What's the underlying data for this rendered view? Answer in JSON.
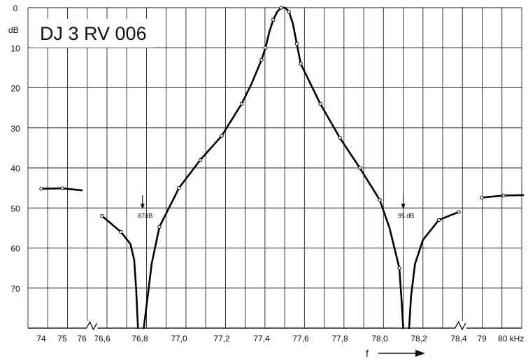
{
  "chart_data": {
    "type": "line",
    "title": "DJ 3 RV 006",
    "ylabel": "dB",
    "xlabel": "f",
    "x_unit": "kHz",
    "y_inverted": true,
    "ylim": [
      0,
      80
    ],
    "grid": true,
    "y_ticks": [
      "0",
      "10",
      "20",
      "30",
      "40",
      "50",
      "60",
      "70"
    ],
    "y_tick_values": [
      0,
      10,
      20,
      30,
      40,
      50,
      60,
      70
    ],
    "x_ticks": [
      {
        "label": "74",
        "value": 74
      },
      {
        "label": "75",
        "value": 75
      },
      {
        "label": "76",
        "value": 76
      },
      {
        "label": "76,6",
        "value": 76.6
      },
      {
        "label": "76,8",
        "value": 76.8
      },
      {
        "label": "77,0",
        "value": 77.0
      },
      {
        "label": "77,2",
        "value": 77.2
      },
      {
        "label": "77,4",
        "value": 77.4
      },
      {
        "label": "77,6",
        "value": 77.6
      },
      {
        "label": "77,8",
        "value": 77.8
      },
      {
        "label": "78,0",
        "value": 78.0
      },
      {
        "label": "78,2",
        "value": 78.2
      },
      {
        "label": "78,4",
        "value": 78.4
      },
      {
        "label": "79",
        "value": 79
      },
      {
        "label": "80 kHz",
        "value": 80
      }
    ],
    "axis_breaks": [
      76.3,
      78.45
    ],
    "annotations": [
      {
        "text": "87dB",
        "x": 76.81,
        "y": 50
      },
      {
        "text": "95 dB",
        "x": 78.12,
        "y": 50
      }
    ],
    "series": [
      {
        "points": [
          [
            74.0,
            45.2
          ],
          [
            75.0,
            45.1
          ],
          [
            76.0,
            45.6
          ]
        ],
        "markers": [
          [
            74.0,
            45.2
          ],
          [
            75.0,
            45.1
          ]
        ]
      },
      {
        "points": [
          [
            76.6,
            52
          ],
          [
            76.7,
            56
          ],
          [
            76.75,
            59
          ],
          [
            76.77,
            63
          ],
          [
            76.78,
            70
          ],
          [
            76.79,
            80
          ]
        ],
        "markers": [
          [
            76.6,
            52
          ],
          [
            76.7,
            56
          ]
        ]
      },
      {
        "points": [
          [
            76.82,
            80
          ],
          [
            76.84,
            72
          ],
          [
            76.86,
            64
          ],
          [
            76.9,
            54.7
          ],
          [
            77.0,
            45
          ],
          [
            77.1,
            38
          ],
          [
            77.2,
            32
          ],
          [
            77.3,
            24
          ],
          [
            77.35,
            19
          ],
          [
            77.4,
            13
          ],
          [
            77.42,
            10
          ],
          [
            77.44,
            6
          ],
          [
            77.46,
            3
          ],
          [
            77.48,
            1
          ],
          [
            77.5,
            0
          ],
          [
            77.52,
            0
          ],
          [
            77.54,
            1
          ],
          [
            77.56,
            4
          ],
          [
            77.58,
            9
          ],
          [
            77.6,
            14
          ],
          [
            77.7,
            24
          ],
          [
            77.8,
            32.5
          ],
          [
            77.9,
            40
          ],
          [
            78.0,
            48
          ],
          [
            78.05,
            55
          ],
          [
            78.1,
            65
          ],
          [
            78.11,
            72
          ],
          [
            78.12,
            80
          ]
        ],
        "markers": [
          [
            76.9,
            54.7
          ],
          [
            77.0,
            45
          ],
          [
            77.1,
            38
          ],
          [
            77.2,
            32
          ],
          [
            77.3,
            24
          ],
          [
            77.4,
            13
          ],
          [
            77.42,
            10
          ],
          [
            77.46,
            3
          ],
          [
            77.5,
            0
          ],
          [
            77.54,
            1
          ],
          [
            77.58,
            9
          ],
          [
            77.6,
            14
          ],
          [
            77.7,
            24
          ],
          [
            77.8,
            32.5
          ],
          [
            77.9,
            40
          ],
          [
            78.0,
            48
          ],
          [
            78.1,
            65
          ]
        ]
      },
      {
        "points": [
          [
            78.15,
            80
          ],
          [
            78.16,
            72
          ],
          [
            78.18,
            64
          ],
          [
            78.22,
            58
          ],
          [
            78.3,
            53
          ],
          [
            78.4,
            51
          ]
        ],
        "markers": [
          [
            78.3,
            53
          ],
          [
            78.4,
            51
          ]
        ]
      },
      {
        "points": [
          [
            79.0,
            47.4
          ],
          [
            80.0,
            46.9
          ],
          [
            81.0,
            46.8
          ]
        ],
        "markers": [
          [
            79.0,
            47.4
          ],
          [
            80.0,
            46.9
          ]
        ]
      }
    ]
  }
}
